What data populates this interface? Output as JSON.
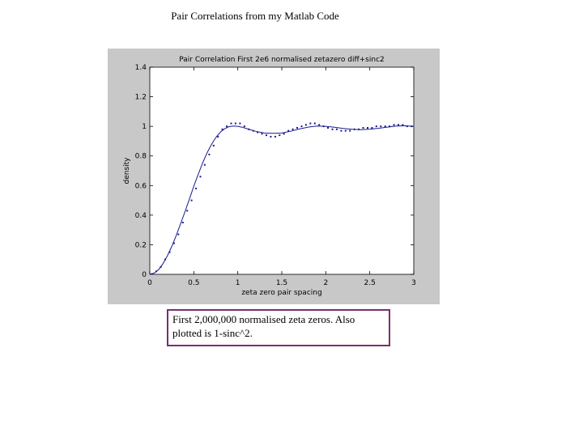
{
  "slide": {
    "title": "Pair Correlations from my Matlab Code",
    "caption": "First 2,000,000 normalised zeta zeros. Also plotted is 1-sinc^2."
  },
  "chart_data": {
    "type": "line",
    "title": "Pair Correlation First 2e6 normalised zetazero diff+sinc2",
    "xlabel": "zeta zero pair spacing",
    "ylabel": "density",
    "xlim": [
      0,
      3
    ],
    "ylim": [
      0,
      1.4
    ],
    "xticks": [
      0,
      0.5,
      1,
      1.5,
      2,
      2.5,
      3
    ],
    "xtick_labels": [
      "0",
      "0.5",
      "1",
      "1.5",
      "2",
      "2.5",
      "3"
    ],
    "yticks": [
      0,
      0.2,
      0.4,
      0.6,
      0.8,
      1,
      1.2,
      1.4
    ],
    "ytick_labels": [
      "0",
      "0.2",
      "0.4",
      "0.6",
      "0.8",
      "1",
      "1.2",
      "1.4"
    ],
    "grid": false,
    "colors": {
      "line": "#1a1a8c",
      "points": "#1a1a8c",
      "axes": "#000000"
    },
    "series": [
      {
        "name": "1-sinc^2",
        "style": "line",
        "x": [
          0,
          0.05,
          0.1,
          0.15,
          0.2,
          0.25,
          0.3,
          0.35,
          0.4,
          0.45,
          0.5,
          0.55,
          0.6,
          0.65,
          0.7,
          0.75,
          0.8,
          0.85,
          0.9,
          0.95,
          1.0,
          1.05,
          1.1,
          1.2,
          1.3,
          1.4,
          1.5,
          1.6,
          1.7,
          1.8,
          1.9,
          2.0,
          2.1,
          2.2,
          2.3,
          2.4,
          2.5,
          2.6,
          2.7,
          2.8,
          2.9,
          3.0
        ],
        "values": [
          0,
          0.008,
          0.032,
          0.072,
          0.125,
          0.189,
          0.262,
          0.341,
          0.424,
          0.508,
          0.595,
          0.676,
          0.752,
          0.82,
          0.877,
          0.924,
          0.96,
          0.984,
          0.998,
          1.002,
          1.0,
          0.994,
          0.985,
          0.967,
          0.955,
          0.953,
          0.955,
          0.967,
          0.982,
          0.995,
          1.002,
          1.0,
          0.994,
          0.986,
          0.98,
          0.978,
          0.981,
          0.987,
          0.995,
          1.002,
          1.004,
          1.0
        ]
      },
      {
        "name": "First 2e6 normalised zetazero diff",
        "style": "points",
        "x": [
          0.025,
          0.075,
          0.125,
          0.175,
          0.225,
          0.275,
          0.325,
          0.375,
          0.425,
          0.475,
          0.525,
          0.575,
          0.625,
          0.675,
          0.725,
          0.775,
          0.825,
          0.875,
          0.925,
          0.975,
          1.025,
          1.075,
          1.125,
          1.175,
          1.225,
          1.275,
          1.325,
          1.375,
          1.425,
          1.475,
          1.525,
          1.575,
          1.625,
          1.675,
          1.725,
          1.775,
          1.825,
          1.875,
          1.925,
          1.975,
          2.025,
          2.075,
          2.125,
          2.175,
          2.225,
          2.275,
          2.325,
          2.375,
          2.425,
          2.475,
          2.525,
          2.575,
          2.625,
          2.675,
          2.725,
          2.775,
          2.825,
          2.875,
          2.925,
          2.975
        ],
        "values": [
          0.003,
          0.02,
          0.05,
          0.1,
          0.15,
          0.21,
          0.27,
          0.35,
          0.43,
          0.5,
          0.58,
          0.66,
          0.74,
          0.81,
          0.87,
          0.93,
          0.98,
          1.0,
          1.02,
          1.02,
          1.02,
          1.0,
          0.98,
          0.97,
          0.96,
          0.95,
          0.94,
          0.93,
          0.93,
          0.94,
          0.95,
          0.97,
          0.98,
          0.99,
          1.0,
          1.01,
          1.02,
          1.02,
          1.01,
          1.0,
          0.99,
          0.98,
          0.98,
          0.97,
          0.97,
          0.97,
          0.98,
          0.98,
          0.99,
          0.99,
          0.99,
          1.0,
          1.0,
          1.0,
          1.0,
          1.01,
          1.01,
          1.01,
          1.0,
          1.0
        ]
      }
    ]
  }
}
